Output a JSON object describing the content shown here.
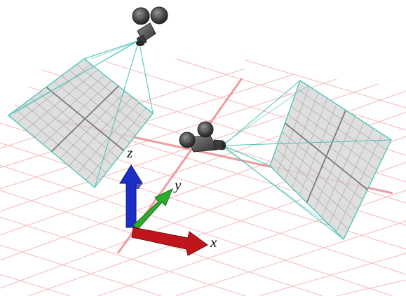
{
  "axes": {
    "x": {
      "label": "x",
      "color": "#c0161b"
    },
    "y": {
      "label": "y",
      "color": "#2eaa2e"
    },
    "z": {
      "label": "z",
      "color": "#1b2fc7"
    }
  },
  "colors": {
    "ground_grid": "#f2a9ac",
    "ground_axis": "#e07a7f",
    "frustum_lines": "#49c3b8",
    "image_plane_fill": "#d8d8d8",
    "image_plane_grid": "#9a9a9a",
    "camera_body": "#4a4a4a"
  },
  "icons": {
    "camera_left": "movie-camera-icon",
    "camera_right": "movie-camera-icon"
  }
}
